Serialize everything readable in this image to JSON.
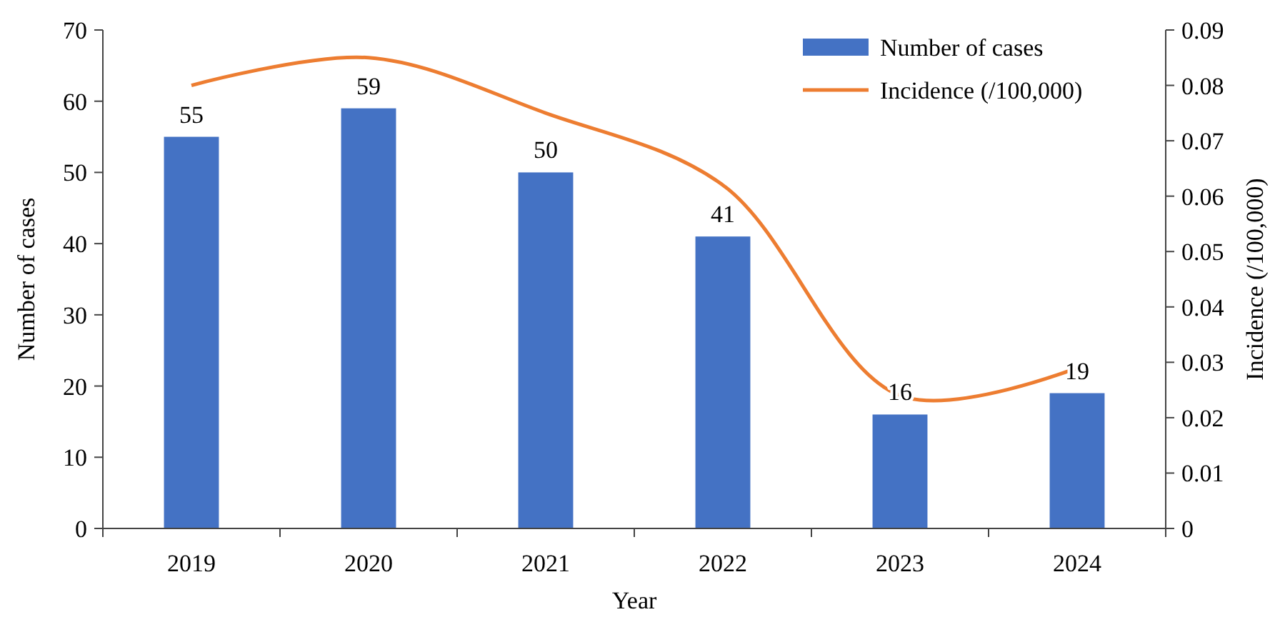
{
  "chart_data": {
    "type": "bar",
    "xlabel": "Year",
    "ylabel": "Number of cases",
    "y2label": "Incidence (/100,000)",
    "categories": [
      "2019",
      "2020",
      "2021",
      "2022",
      "2023",
      "2024"
    ],
    "series": [
      {
        "name": "Number of cases",
        "color": "#4472c4",
        "values": [
          55,
          59,
          50,
          41,
          16,
          19
        ],
        "value_labels": [
          "55",
          "59",
          "50",
          "41",
          "16",
          "19"
        ]
      },
      {
        "name": "Incidence (/100,000)",
        "type": "line",
        "axis": "y2",
        "color": "#ed7d31",
        "values": [
          0.08,
          0.085,
          0.075,
          0.062,
          0.024,
          0.029
        ]
      }
    ],
    "ylim": [
      0,
      70
    ],
    "yticks": [
      0,
      10,
      20,
      30,
      40,
      50,
      60,
      70
    ],
    "y2lim": [
      0,
      0.09
    ],
    "y2ticks": [
      0,
      0.01,
      0.02,
      0.03,
      0.04,
      0.05,
      0.06,
      0.07,
      0.08,
      0.09
    ],
    "legend": "top right",
    "grid": false,
    "marker": "none",
    "line_style": "solid"
  }
}
